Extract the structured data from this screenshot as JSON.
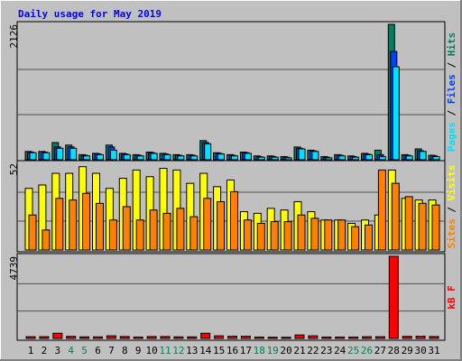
{
  "chart_data": [
    {
      "type": "bar",
      "title": "Daily usage for May 2019",
      "ylim": [
        0,
        2126
      ],
      "yticks": [
        2126
      ],
      "legend_separator": " / ",
      "series": [
        {
          "name": "Hits",
          "color": "#008060",
          "values": [
            130,
            130,
            270,
            230,
            80,
            100,
            230,
            100,
            80,
            120,
            100,
            80,
            80,
            300,
            110,
            80,
            120,
            60,
            60,
            50,
            200,
            150,
            50,
            80,
            60,
            100,
            150,
            2126,
            80,
            170,
            70
          ]
        },
        {
          "name": "Files",
          "color": "#0040ff",
          "values": [
            120,
            120,
            200,
            200,
            70,
            90,
            200,
            90,
            70,
            110,
            90,
            70,
            70,
            270,
            100,
            70,
            110,
            50,
            50,
            40,
            180,
            140,
            40,
            70,
            50,
            90,
            80,
            1700,
            70,
            140,
            60
          ]
        },
        {
          "name": "Pages",
          "color": "#00e0ff",
          "values": [
            110,
            110,
            180,
            180,
            60,
            80,
            150,
            80,
            60,
            100,
            80,
            60,
            60,
            250,
            90,
            60,
            100,
            40,
            40,
            30,
            170,
            130,
            30,
            60,
            40,
            80,
            50,
            1460,
            60,
            130,
            50
          ]
        }
      ]
    },
    {
      "type": "bar",
      "ylim": [
        0,
        52
      ],
      "yticks": [
        52
      ],
      "legend_separator": " / ",
      "series": [
        {
          "name": "Visits",
          "color": "#ffff00",
          "values": [
            37,
            39,
            46,
            46,
            50,
            46,
            37,
            43,
            48,
            44,
            49,
            48,
            40,
            46,
            38,
            42,
            23,
            22,
            25,
            24,
            29,
            23,
            18,
            18,
            16,
            18,
            21,
            48,
            31,
            30,
            30
          ]
        },
        {
          "name": "Sites",
          "color": "#ff8000",
          "values": [
            21,
            12,
            31,
            30,
            34,
            28,
            18,
            26,
            18,
            24,
            22,
            25,
            20,
            31,
            29,
            35,
            18,
            16,
            17,
            17,
            21,
            19,
            18,
            18,
            14,
            15,
            48,
            40,
            32,
            28,
            27
          ]
        }
      ]
    },
    {
      "type": "bar",
      "ylim": [
        0,
        4739
      ],
      "yticks": [
        4739
      ],
      "categories": [
        "1",
        "2",
        "3",
        "4",
        "5",
        "6",
        "7",
        "8",
        "9",
        "10",
        "11",
        "12",
        "13",
        "14",
        "15",
        "16",
        "17",
        "18",
        "19",
        "20",
        "21",
        "22",
        "23",
        "24",
        "25",
        "26",
        "27",
        "28",
        "29",
        "30",
        "31"
      ],
      "label_colors": [
        "#000000",
        "#000000",
        "#000000",
        "#00805c",
        "#00805c",
        "#000000",
        "#000000",
        "#000000",
        "#000000",
        "#000000",
        "#00805c",
        "#00805c",
        "#000000",
        "#000000",
        "#000000",
        "#000000",
        "#000000",
        "#00805c",
        "#00805c",
        "#000000",
        "#000000",
        "#000000",
        "#000000",
        "#000000",
        "#00805c",
        "#00805c",
        "#000000",
        "#000000",
        "#000000",
        "#000000",
        "#000000"
      ],
      "series": [
        {
          "name": "kB F",
          "color": "#ff0000",
          "values": [
            100,
            100,
            300,
            120,
            90,
            90,
            150,
            110,
            80,
            110,
            110,
            90,
            90,
            300,
            150,
            130,
            130,
            80,
            70,
            70,
            200,
            150,
            80,
            80,
            80,
            100,
            100,
            4739,
            120,
            130,
            110
          ]
        }
      ]
    }
  ]
}
